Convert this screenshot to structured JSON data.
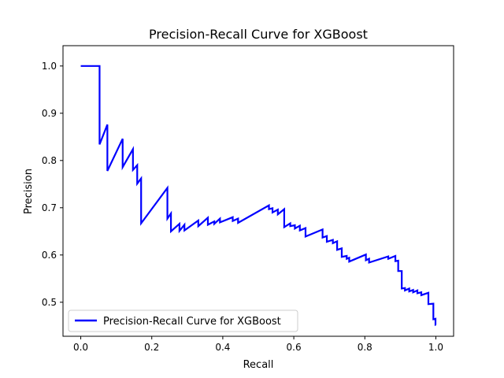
{
  "chart_data": {
    "type": "line",
    "title": "Precision-Recall Curve for XGBoost",
    "xlabel": "Recall",
    "ylabel": "Precision",
    "xlim": [
      -0.05,
      1.05
    ],
    "ylim": [
      0.428,
      1.043
    ],
    "x_ticks": [
      "0.0",
      "0.2",
      "0.4",
      "0.6",
      "0.8",
      "1.0"
    ],
    "y_ticks": [
      "0.5",
      "0.6",
      "0.7",
      "0.8",
      "0.9",
      "1.0"
    ],
    "grid": false,
    "legend_position": "lower-left",
    "series": [
      {
        "name": "Precision-Recall Curve for XGBoost",
        "color": "#0000ff",
        "points": [
          [
            0.0,
            1.0
          ],
          [
            0.053,
            1.0
          ],
          [
            0.053,
            0.834
          ],
          [
            0.075,
            0.876
          ],
          [
            0.075,
            0.778
          ],
          [
            0.118,
            0.846
          ],
          [
            0.118,
            0.786
          ],
          [
            0.147,
            0.824
          ],
          [
            0.147,
            0.78
          ],
          [
            0.159,
            0.79
          ],
          [
            0.159,
            0.751
          ],
          [
            0.17,
            0.762
          ],
          [
            0.17,
            0.667
          ],
          [
            0.244,
            0.742
          ],
          [
            0.244,
            0.677
          ],
          [
            0.254,
            0.688
          ],
          [
            0.254,
            0.65
          ],
          [
            0.278,
            0.666
          ],
          [
            0.278,
            0.651
          ],
          [
            0.292,
            0.664
          ],
          [
            0.292,
            0.652
          ],
          [
            0.331,
            0.673
          ],
          [
            0.331,
            0.661
          ],
          [
            0.358,
            0.679
          ],
          [
            0.358,
            0.664
          ],
          [
            0.376,
            0.671
          ],
          [
            0.376,
            0.666
          ],
          [
            0.392,
            0.677
          ],
          [
            0.392,
            0.669
          ],
          [
            0.428,
            0.68
          ],
          [
            0.428,
            0.672
          ],
          [
            0.443,
            0.677
          ],
          [
            0.443,
            0.668
          ],
          [
            0.53,
            0.705
          ],
          [
            0.53,
            0.697
          ],
          [
            0.54,
            0.699
          ],
          [
            0.54,
            0.69
          ],
          [
            0.555,
            0.696
          ],
          [
            0.555,
            0.686
          ],
          [
            0.573,
            0.697
          ],
          [
            0.573,
            0.659
          ],
          [
            0.59,
            0.667
          ],
          [
            0.59,
            0.661
          ],
          [
            0.603,
            0.663
          ],
          [
            0.603,
            0.656
          ],
          [
            0.617,
            0.662
          ],
          [
            0.617,
            0.652
          ],
          [
            0.633,
            0.657
          ],
          [
            0.633,
            0.639
          ],
          [
            0.681,
            0.654
          ],
          [
            0.681,
            0.637
          ],
          [
            0.693,
            0.64
          ],
          [
            0.693,
            0.628
          ],
          [
            0.71,
            0.632
          ],
          [
            0.71,
            0.625
          ],
          [
            0.722,
            0.629
          ],
          [
            0.722,
            0.611
          ],
          [
            0.735,
            0.614
          ],
          [
            0.735,
            0.596
          ],
          [
            0.749,
            0.598
          ],
          [
            0.749,
            0.592
          ],
          [
            0.756,
            0.594
          ],
          [
            0.756,
            0.586
          ],
          [
            0.803,
            0.601
          ],
          [
            0.803,
            0.589
          ],
          [
            0.812,
            0.592
          ],
          [
            0.812,
            0.584
          ],
          [
            0.866,
            0.597
          ],
          [
            0.866,
            0.592
          ],
          [
            0.886,
            0.598
          ],
          [
            0.886,
            0.587
          ],
          [
            0.894,
            0.588
          ],
          [
            0.894,
            0.566
          ],
          [
            0.904,
            0.566
          ],
          [
            0.904,
            0.529
          ],
          [
            0.913,
            0.53
          ],
          [
            0.913,
            0.525
          ],
          [
            0.925,
            0.529
          ],
          [
            0.925,
            0.523
          ],
          [
            0.936,
            0.526
          ],
          [
            0.936,
            0.521
          ],
          [
            0.948,
            0.525
          ],
          [
            0.948,
            0.519
          ],
          [
            0.959,
            0.521
          ],
          [
            0.959,
            0.515
          ],
          [
            0.979,
            0.52
          ],
          [
            0.979,
            0.496
          ],
          [
            0.993,
            0.497
          ],
          [
            0.993,
            0.464
          ],
          [
            0.999,
            0.465
          ],
          [
            0.999,
            0.452
          ],
          [
            1.0,
            0.452
          ]
        ]
      }
    ]
  }
}
